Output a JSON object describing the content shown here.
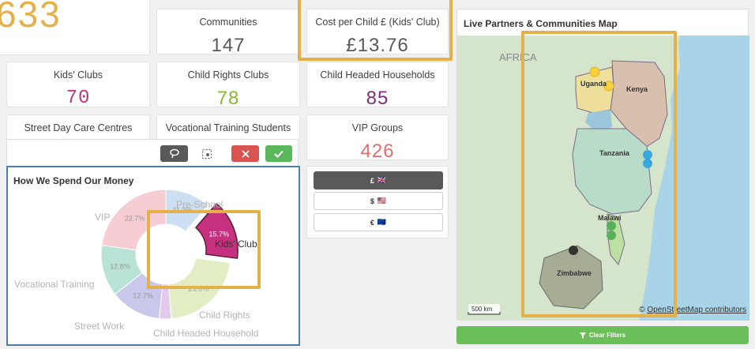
{
  "top_partial_value": "633",
  "kpis": [
    {
      "label": "Communities",
      "value": "147",
      "color": "#595959"
    },
    {
      "label": "Cost per Child £ (Kids' Club)",
      "value": "£13.76",
      "color": "#595959"
    },
    {
      "label": "Kids' Clubs",
      "value": "70",
      "color": "#c5317e"
    },
    {
      "label": "Child Rights Clubs",
      "value": "78",
      "color": "#8db53c"
    },
    {
      "label": "Child Headed Households",
      "value": "85",
      "color": "#7b2f7b"
    },
    {
      "label": "Street Day Care Centres",
      "value": "",
      "color": "#3d5a99"
    },
    {
      "label": "Vocational Training Students",
      "value": "",
      "color": "#3d8e88"
    },
    {
      "label": "VIP Groups",
      "value": "426",
      "color": "#e06e6e"
    }
  ],
  "spend_chart": {
    "title": "How We Spend Our Money",
    "chart_data": {
      "type": "pie",
      "title": "How We Spend Our Money",
      "slices": [
        {
          "name": "Pre-School",
          "value": 11.3,
          "label": "11.3%",
          "color": "#cddff2"
        },
        {
          "name": "Kids' Club",
          "value": 15.7,
          "label": "15.7%",
          "color": "#c5317e"
        },
        {
          "name": "Child Rights",
          "value": 21.5,
          "label": "21.5%",
          "color": "#e2edc4"
        },
        {
          "name": "Child Headed Household",
          "value": 3.0,
          "label": "",
          "color": "#e3c9ee"
        },
        {
          "name": "Street Work",
          "value": 12.7,
          "label": "12.7%",
          "color": "#c8c8ea"
        },
        {
          "name": "Vocational Training",
          "value": 12.8,
          "label": "12.8%",
          "color": "#b9e3d7"
        },
        {
          "name": "VIP",
          "value": 22.7,
          "label": "22.7%",
          "color": "#f6cdd2"
        }
      ]
    }
  },
  "currency_buttons": [
    {
      "symbol": "£",
      "flag": "🇬🇧",
      "active": true
    },
    {
      "symbol": "$",
      "flag": "🇺🇸",
      "active": false
    },
    {
      "symbol": "€",
      "flag": "🇪🇺",
      "active": false
    }
  ],
  "map": {
    "title": "Live Partners & Communities Map",
    "labels": {
      "africa": "AFRICA",
      "uganda": "Uganda",
      "kenya": "Kenya",
      "tanzania": "Tanzania",
      "malawi": "Malawi",
      "zimbabwe": "Zimbabwe"
    },
    "scale": "500 km",
    "attribution_symbol": "©",
    "attribution": "OpenStreetMap contributors"
  },
  "clear_filters_label": "Clear Filters",
  "colors": {
    "highlight": "#e3b049",
    "accent_green": "#5cb85c",
    "danger_red": "#d9534f",
    "dark_button": "#595959"
  }
}
